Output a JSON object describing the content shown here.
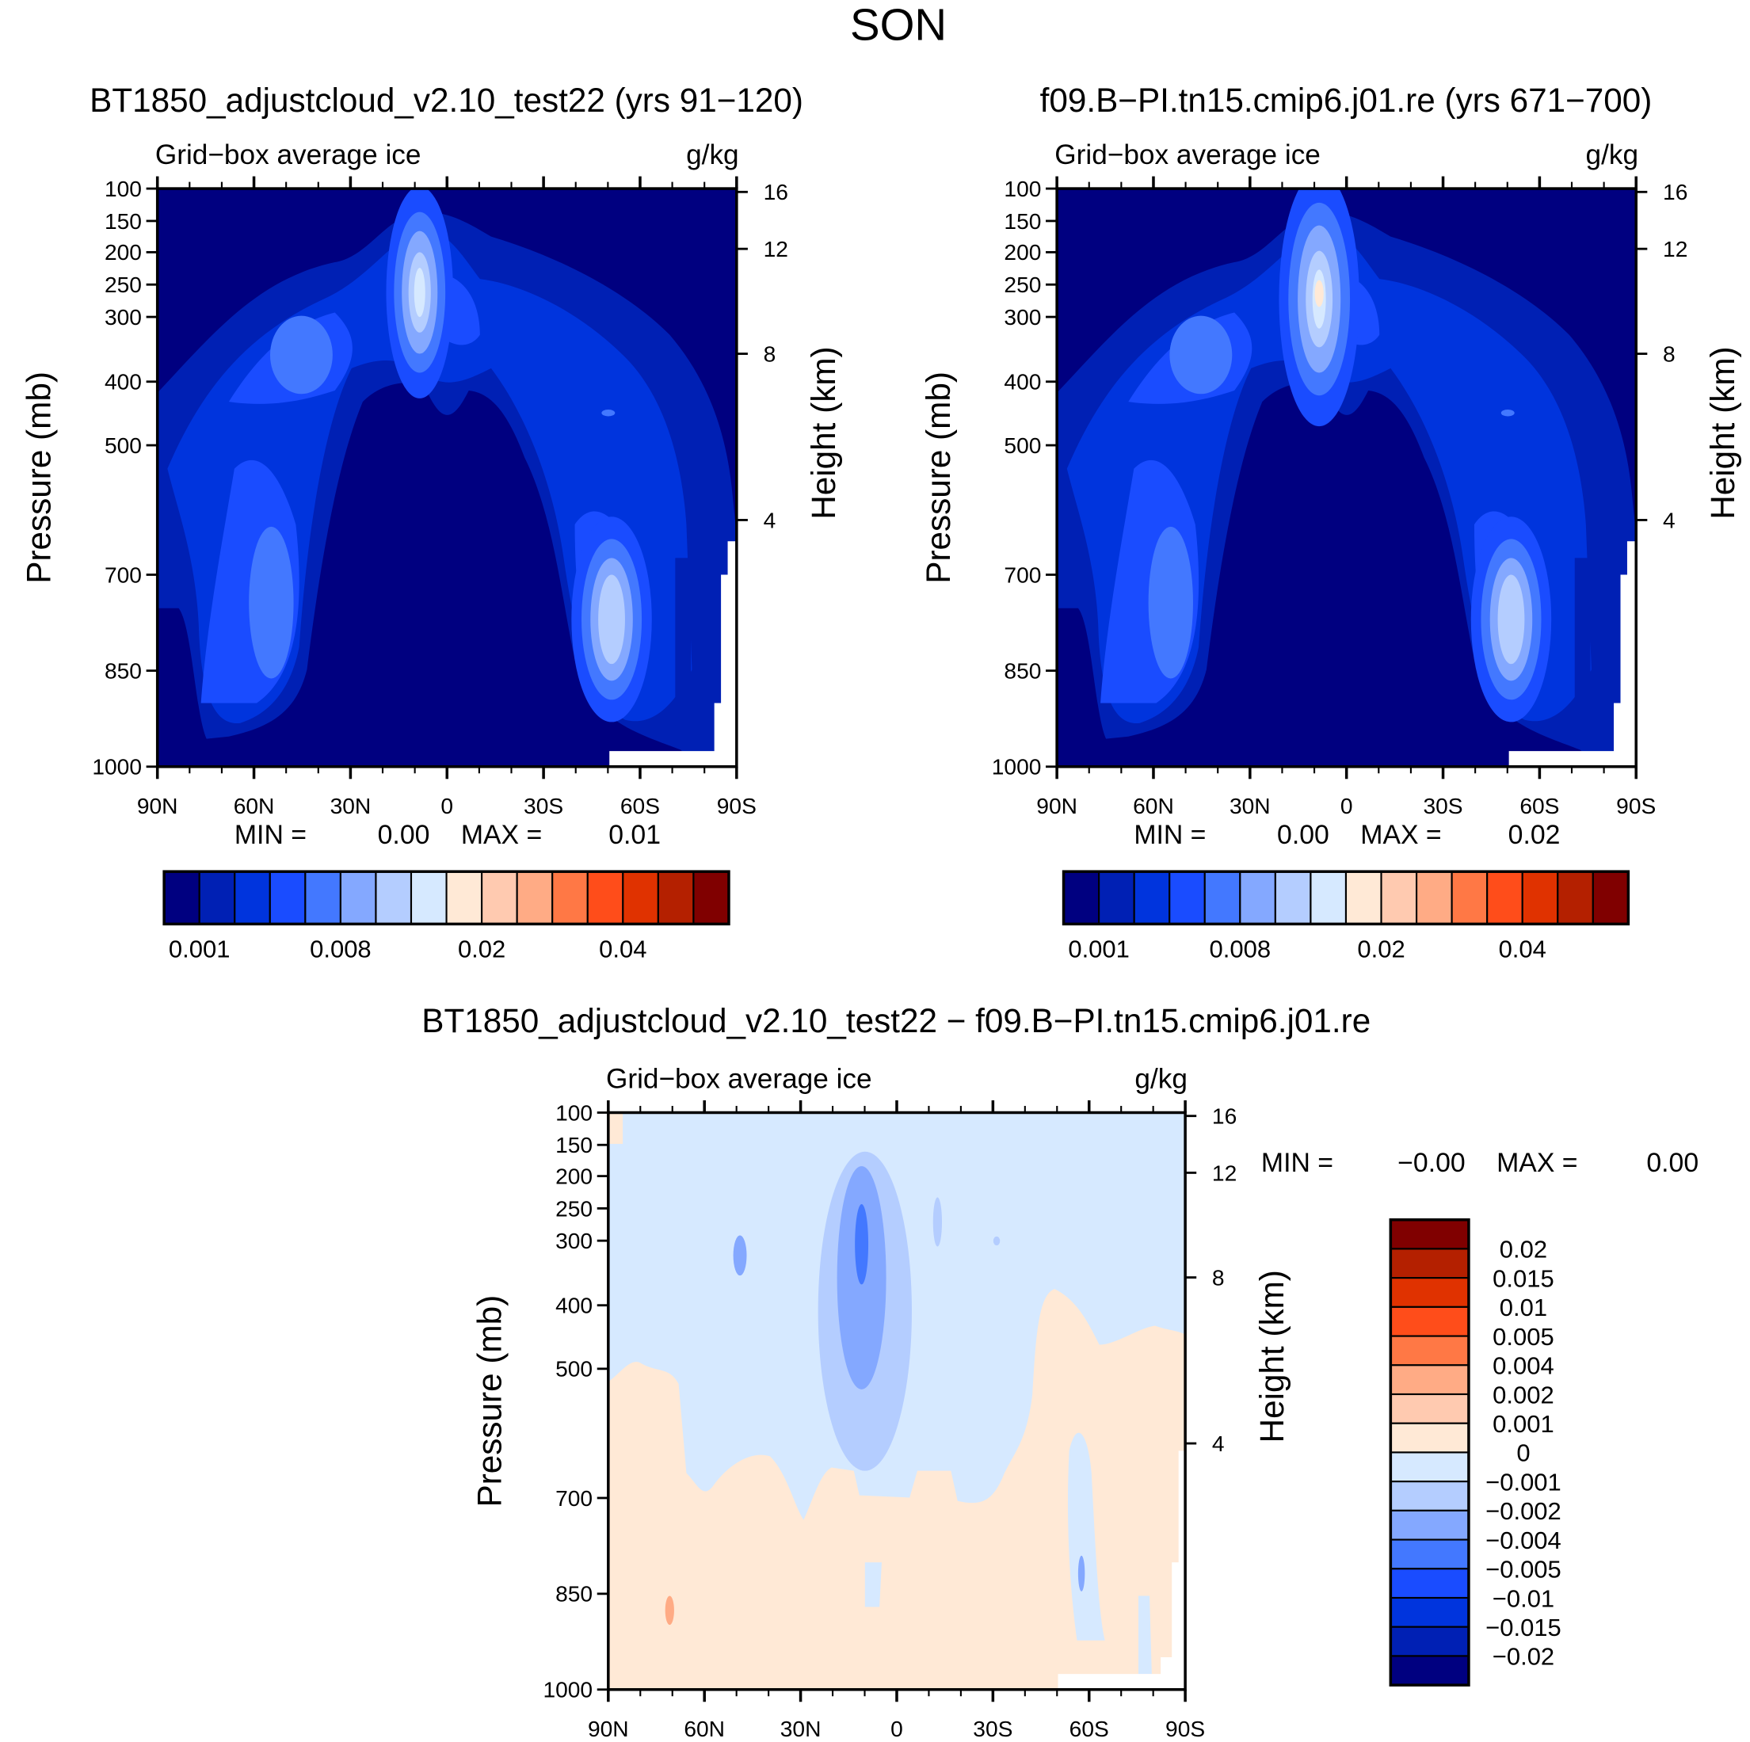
{
  "chart_data": {
    "type": "heatmap",
    "title": "SON",
    "panels": [
      {
        "title": "BT1850_adjustcloud_v2.10_test22 (yrs 91−120)",
        "left_string": "Grid−box average ice",
        "right_string": "g/kg",
        "ylabel": "Pressure (mb)",
        "ylabel_right": "Height (km)",
        "min_label": "MIN =",
        "min_value": "0.00",
        "max_label": "MAX =",
        "max_value": "0.01"
      },
      {
        "title": "f09.B−PI.tn15.cmip6.j01.re (yrs 671−700)",
        "left_string": "Grid−box average ice",
        "right_string": "g/kg",
        "ylabel": "Pressure (mb)",
        "ylabel_right": "Height (km)",
        "min_label": "MIN =",
        "min_value": "0.00",
        "max_label": "MAX =",
        "max_value": "0.02"
      },
      {
        "title": "BT1850_adjustcloud_v2.10_test22 − f09.B−PI.tn15.cmip6.j01.re",
        "left_string": "Grid−box average ice",
        "right_string": "g/kg",
        "ylabel": "Pressure (mb)",
        "ylabel_right": "Height (km)",
        "min_label": "MIN =",
        "min_value": "−0.00",
        "max_label": "MAX =",
        "max_value": "0.00"
      }
    ],
    "x_ticks": [
      "90N",
      "60N",
      "30N",
      "0",
      "30S",
      "60S",
      "90S"
    ],
    "y_ticks": [
      "100",
      "150",
      "200",
      "250",
      "300",
      "400",
      "500",
      "700",
      "850",
      "1000"
    ],
    "y_tick_values": [
      100,
      150,
      200,
      250,
      300,
      400,
      500,
      700,
      850,
      1000
    ],
    "height_ticks": [
      "16",
      "12",
      "8",
      "4"
    ],
    "height_tick_values": [
      16,
      12,
      8,
      4
    ],
    "colorbar_main": {
      "labels": [
        "0.001",
        "0.008",
        "0.02",
        "0.04"
      ],
      "colors": [
        "#000080",
        "#0020b4",
        "#0034dd",
        "#1a4cff",
        "#4378ff",
        "#84a8ff",
        "#b4cdff",
        "#d6e9ff",
        "#ffe9d6",
        "#ffcab0",
        "#ffab85",
        "#ff7845",
        "#ff4d1a",
        "#e03200",
        "#b42000",
        "#800000"
      ]
    },
    "colorbar_diff": {
      "labels": [
        "0.02",
        "0.015",
        "0.01",
        "0.005",
        "0.004",
        "0.002",
        "0.001",
        "0",
        "−0.001",
        "−0.002",
        "−0.004",
        "−0.005",
        "−0.01",
        "−0.015",
        "−0.02"
      ],
      "colors_top_to_bottom": [
        "#800000",
        "#b42000",
        "#e03200",
        "#ff4d1a",
        "#ff7845",
        "#ffab85",
        "#ffcab0",
        "#ffe9d6",
        "#d6e9ff",
        "#b4cdff",
        "#84a8ff",
        "#4378ff",
        "#1a4cff",
        "#0034dd",
        "#0020b4",
        "#000080"
      ]
    }
  }
}
